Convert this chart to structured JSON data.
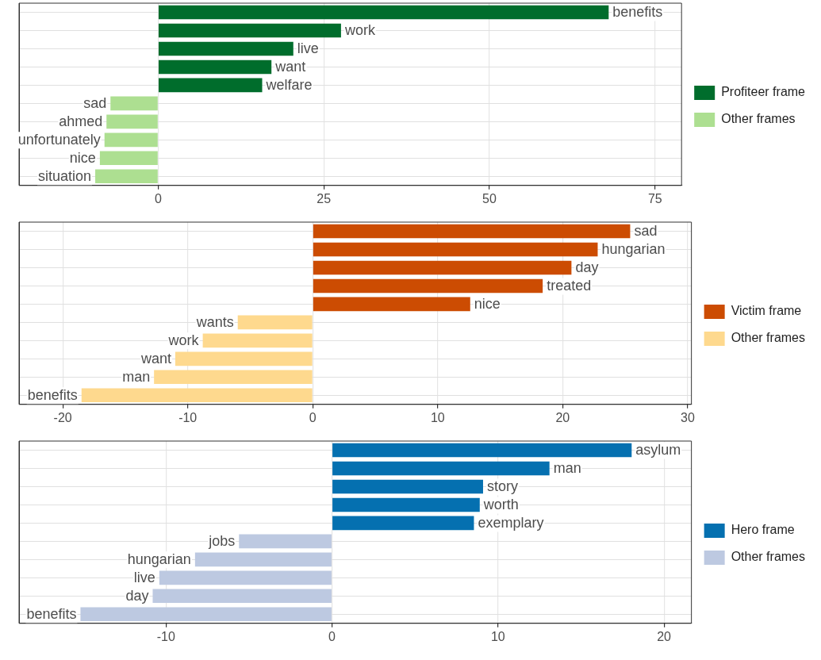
{
  "chart_data": [
    {
      "type": "bar",
      "orientation": "horizontal",
      "categories": [
        "benefits",
        "work",
        "live",
        "want",
        "welfare",
        "sad",
        "ahmed",
        "unfortunately",
        "nice",
        "situation"
      ],
      "series": [
        {
          "name": "Profiteer frame",
          "color": "#006d2c",
          "values": [
            68,
            27.6,
            20.4,
            17.1,
            15.7,
            null,
            null,
            null,
            null,
            null
          ]
        },
        {
          "name": "Other frames",
          "color": "#addf91",
          "values": [
            null,
            null,
            null,
            null,
            null,
            -7.2,
            -7.8,
            -8.1,
            -8.8,
            -9.5
          ]
        }
      ],
      "xlim": [
        -21,
        79
      ],
      "xticks": [
        0,
        25,
        50,
        75
      ],
      "grid": true,
      "legend": "right",
      "tick_labels": "x"
    },
    {
      "type": "bar",
      "orientation": "horizontal",
      "categories": [
        "sad",
        "hungarian",
        "day",
        "treated",
        "nice",
        "wants",
        "work",
        "want",
        "man",
        "benefits"
      ],
      "series": [
        {
          "name": "Victim frame",
          "color": "#cc4c02",
          "values": [
            25.4,
            22.8,
            20.7,
            18.4,
            12.6,
            null,
            null,
            null,
            null,
            null
          ]
        },
        {
          "name": "Other frames",
          "color": "#fed98e",
          "values": [
            null,
            null,
            null,
            null,
            null,
            -6,
            -8.8,
            -11,
            -12.7,
            -18.5
          ]
        }
      ],
      "xlim": [
        -23.5,
        30.3
      ],
      "xticks": [
        -20,
        -10,
        0,
        10,
        20,
        30
      ],
      "grid": true,
      "legend": "right",
      "tick_labels": "x"
    },
    {
      "type": "bar",
      "orientation": "horizontal",
      "categories": [
        "asylum",
        "man",
        "story",
        "worth",
        "exemplary",
        "jobs",
        "hungarian",
        "live",
        "day",
        "benefits"
      ],
      "series": [
        {
          "name": "Hero frame",
          "color": "#0570b0",
          "values": [
            18.05,
            13.1,
            9.1,
            8.9,
            8.55,
            null,
            null,
            null,
            null,
            null
          ]
        },
        {
          "name": "Other frames",
          "color": "#bdc9e1",
          "values": [
            null,
            null,
            null,
            null,
            null,
            -5.6,
            -8.25,
            -10.4,
            -10.8,
            -15.15
          ]
        }
      ],
      "xlim": [
        -18.85,
        21.65
      ],
      "xticks": [
        -10,
        0,
        10,
        20
      ],
      "grid": true,
      "legend": "right",
      "tick_labels": "x"
    }
  ]
}
